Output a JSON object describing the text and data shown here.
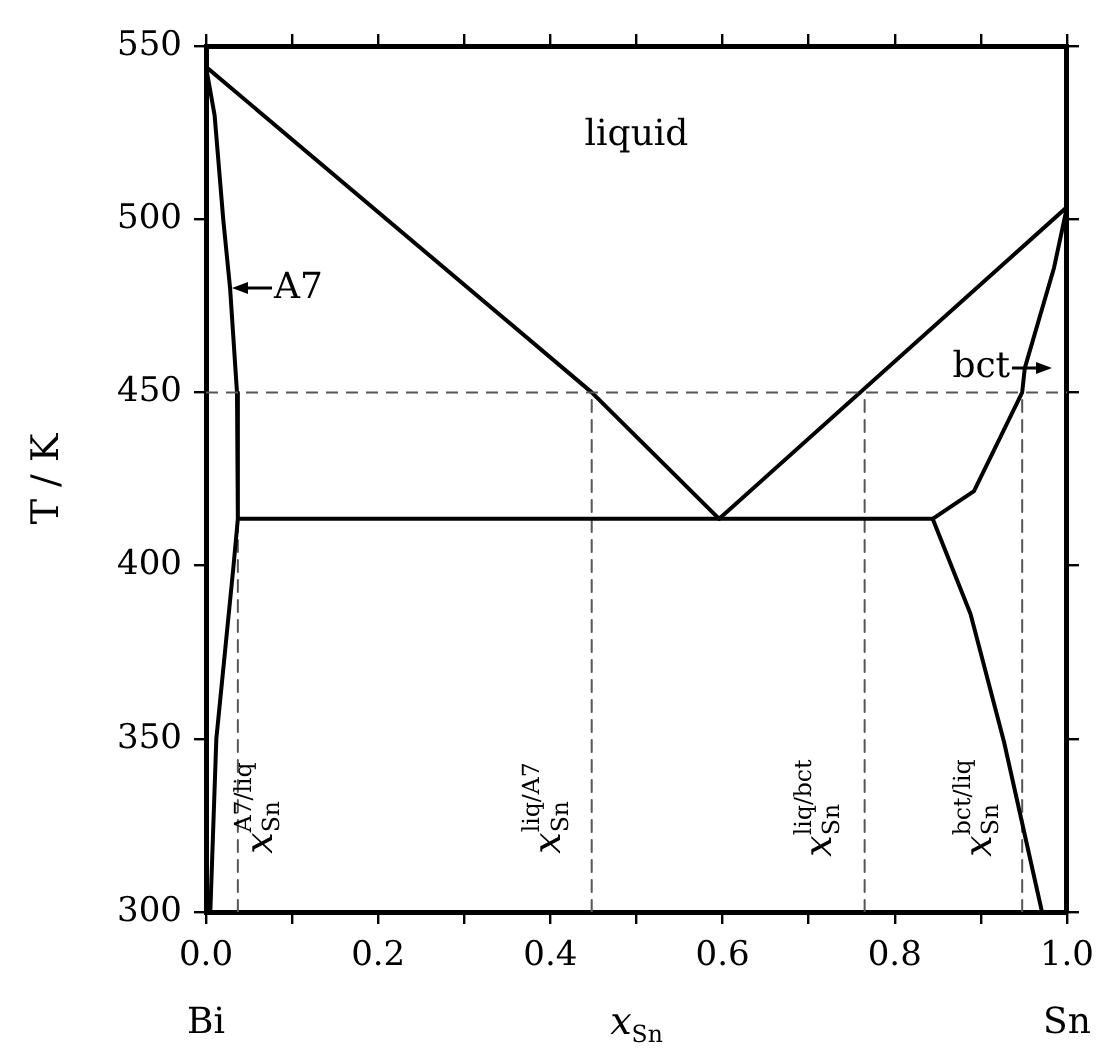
{
  "chart_data": {
    "type": "line",
    "xlabel": "x$_{Sn}$",
    "ylabel": "T / K",
    "xlim": [
      0,
      1
    ],
    "ylim": [
      300,
      550
    ],
    "xticks": [
      {
        "value": 0,
        "label": "0.0"
      },
      {
        "value": 0.1,
        "label": null
      },
      {
        "value": 0.2,
        "label": "0.2"
      },
      {
        "value": 0.3,
        "label": null
      },
      {
        "value": 0.4,
        "label": "0.4"
      },
      {
        "value": 0.5,
        "label": null
      },
      {
        "value": 0.6,
        "label": "0.6"
      },
      {
        "value": 0.7,
        "label": null
      },
      {
        "value": 0.8,
        "label": "0.8"
      },
      {
        "value": 0.9,
        "label": null
      },
      {
        "value": 1,
        "label": "1.0"
      }
    ],
    "yticks": [
      300,
      350,
      400,
      450,
      500,
      550
    ],
    "grid": false,
    "legend": false,
    "marker": "none",
    "ref_lines": [
      {
        "axis": "y",
        "value": 450,
        "label": null,
        "color": "#555555",
        "line_style": "dashed"
      }
    ],
    "series": [
      {
        "color": "#000000",
        "x": [
          0,
          0.448,
          0.596
        ],
        "values": [
          544,
          450,
          413.5
        ]
      },
      {
        "color": "#000000",
        "x": [
          0.596,
          1
        ],
        "values": [
          413.5,
          503.5
        ]
      },
      {
        "color": "#000000",
        "x": [
          0.037,
          0.844
        ],
        "values": [
          413.5,
          413.5
        ]
      },
      {
        "color": "#000000",
        "x": [
          0,
          0.01,
          0.02,
          0.028,
          0.036,
          0.037,
          0.032,
          0.012,
          0.005
        ],
        "values": [
          544,
          530,
          500,
          480,
          450,
          413.5,
          400,
          350,
          300
        ]
      },
      {
        "color": "#000000",
        "x": [
          1,
          0.985,
          0.951,
          0.948,
          0.892,
          0.844,
          0.888,
          0.927,
          0.971
        ],
        "values": [
          503.5,
          486,
          457,
          450,
          421.5,
          413.5,
          386,
          349,
          300
        ]
      },
      {
        "color": "#555555",
        "line_style": "dashed",
        "x": [
          0.037,
          0.037
        ],
        "values": [
          300,
          413.5
        ]
      },
      {
        "color": "#555555",
        "line_style": "dashed",
        "x": [
          0.448,
          0.448
        ],
        "values": [
          300,
          450
        ]
      },
      {
        "color": "#555555",
        "line_style": "dashed",
        "x": [
          0.765,
          0.765
        ],
        "values": [
          300,
          450
        ]
      },
      {
        "color": "#555555",
        "line_style": "dashed",
        "x": [
          0.948,
          0.948
        ],
        "values": [
          300,
          450
        ]
      }
    ],
    "annotations": [
      "liquid",
      "A7",
      "bct",
      "x$_{Sn}$$^{A7/liq}$",
      "x$_{Sn}$$^{liq/A7}$",
      "x$_{Sn}$$^{liq/bct}$",
      "x$_{Sn}$$^{bct/liq}$",
      "Bi",
      "Sn"
    ]
  }
}
